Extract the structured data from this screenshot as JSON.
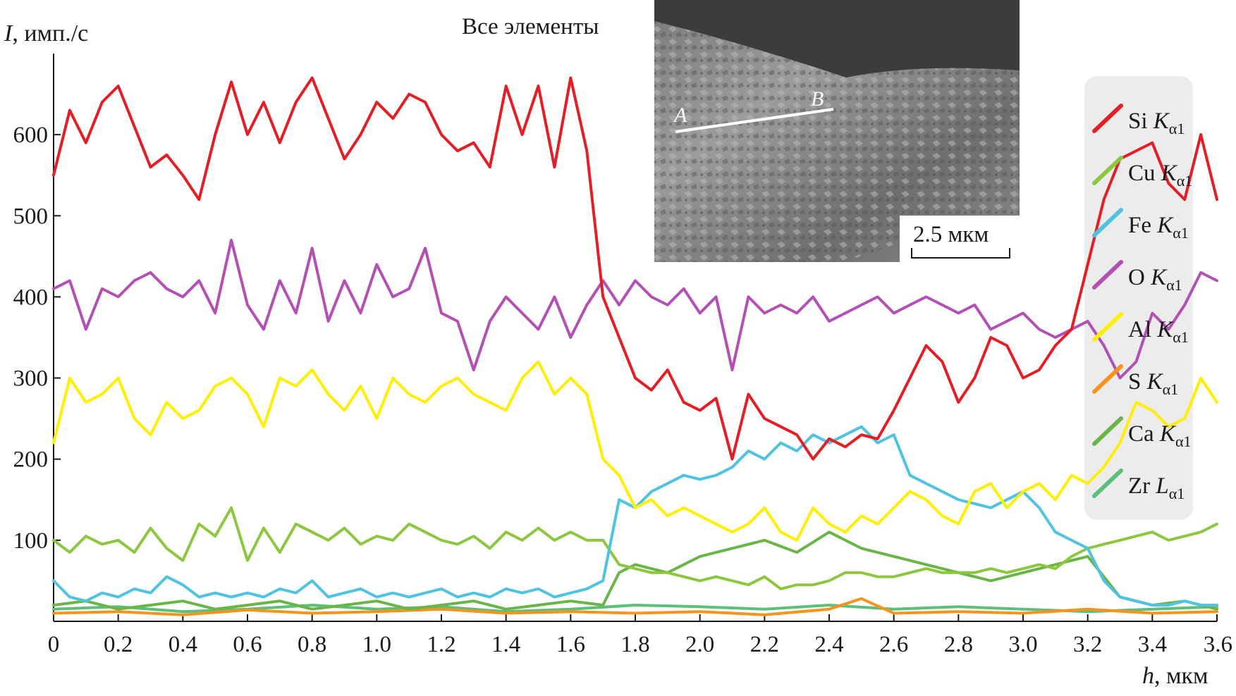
{
  "chart_data": {
    "type": "line",
    "title": "Все элементы",
    "ylabel_symbol": "I",
    "ylabel_unit": ", имп./с",
    "xlabel_symbol": "h",
    "xlabel_unit": ", мкм",
    "xlim": [
      0,
      3.6
    ],
    "ylim": [
      0,
      700
    ],
    "x_ticks": [
      0,
      0.2,
      0.4,
      0.6,
      0.8,
      1.0,
      1.2,
      1.4,
      1.6,
      1.8,
      2.0,
      2.2,
      2.4,
      2.6,
      2.8,
      3.0,
      3.2,
      3.4,
      3.6
    ],
    "x_tick_labels": [
      "0",
      "0.2",
      "0.4",
      "0.6",
      "0.8",
      "1.0",
      "1.2",
      "1.4",
      "1.6",
      "1.8",
      "2.0",
      "2.2",
      "2.4",
      "2.6",
      "2.8",
      "3.0",
      "3.2",
      "3.4",
      "3.6"
    ],
    "y_ticks": [
      100,
      200,
      300,
      400,
      500,
      600
    ],
    "y_tick_labels": [
      "100",
      "200",
      "300",
      "400",
      "500",
      "600"
    ],
    "inset": {
      "scale_bar_label": "2.5 мкм",
      "point_a": "A",
      "point_b": "B"
    },
    "series": [
      {
        "name": "Si",
        "line": "K",
        "subscript": "α1",
        "color": "#e31e24",
        "x": [
          0,
          0.05,
          0.1,
          0.15,
          0.2,
          0.25,
          0.3,
          0.35,
          0.4,
          0.45,
          0.5,
          0.55,
          0.6,
          0.65,
          0.7,
          0.75,
          0.8,
          0.85,
          0.9,
          0.95,
          1.0,
          1.05,
          1.1,
          1.15,
          1.2,
          1.25,
          1.3,
          1.35,
          1.4,
          1.45,
          1.5,
          1.55,
          1.6,
          1.65,
          1.7,
          1.75,
          1.8,
          1.85,
          1.9,
          1.95,
          2.0,
          2.05,
          2.1,
          2.15,
          2.2,
          2.25,
          2.3,
          2.35,
          2.4,
          2.45,
          2.5,
          2.55,
          2.6,
          2.65,
          2.7,
          2.75,
          2.8,
          2.85,
          2.9,
          2.95,
          3.0,
          3.05,
          3.1,
          3.15,
          3.2,
          3.25,
          3.3,
          3.35,
          3.4,
          3.45,
          3.5,
          3.55,
          3.6
        ],
        "values": [
          550,
          630,
          590,
          640,
          660,
          610,
          560,
          575,
          550,
          520,
          600,
          665,
          600,
          640,
          590,
          640,
          670,
          620,
          570,
          600,
          640,
          620,
          650,
          640,
          600,
          580,
          590,
          560,
          660,
          600,
          660,
          560,
          670,
          580,
          400,
          350,
          300,
          285,
          310,
          270,
          260,
          275,
          200,
          280,
          250,
          240,
          230,
          200,
          225,
          215,
          230,
          225,
          260,
          300,
          340,
          320,
          270,
          300,
          350,
          340,
          300,
          310,
          340,
          360,
          440,
          520,
          570,
          580,
          590,
          540,
          520,
          600,
          520
        ]
      },
      {
        "name": "Cu",
        "line": "K",
        "subscript": "α1",
        "color": "#8dc63f",
        "x": [
          0,
          0.05,
          0.1,
          0.15,
          0.2,
          0.25,
          0.3,
          0.35,
          0.4,
          0.45,
          0.5,
          0.55,
          0.6,
          0.65,
          0.7,
          0.75,
          0.8,
          0.85,
          0.9,
          0.95,
          1.0,
          1.05,
          1.1,
          1.15,
          1.2,
          1.25,
          1.3,
          1.35,
          1.4,
          1.45,
          1.5,
          1.55,
          1.6,
          1.65,
          1.7,
          1.75,
          1.8,
          1.85,
          1.9,
          1.95,
          2.0,
          2.05,
          2.1,
          2.15,
          2.2,
          2.25,
          2.3,
          2.35,
          2.4,
          2.45,
          2.5,
          2.55,
          2.6,
          2.65,
          2.7,
          2.75,
          2.8,
          2.85,
          2.9,
          2.95,
          3.0,
          3.05,
          3.1,
          3.15,
          3.2,
          3.25,
          3.3,
          3.35,
          3.4,
          3.45,
          3.5,
          3.55,
          3.6
        ],
        "values": [
          100,
          85,
          105,
          95,
          100,
          85,
          115,
          90,
          75,
          120,
          105,
          140,
          75,
          115,
          85,
          120,
          110,
          100,
          115,
          95,
          105,
          100,
          120,
          110,
          100,
          95,
          105,
          90,
          110,
          100,
          115,
          100,
          110,
          100,
          100,
          70,
          65,
          60,
          60,
          55,
          50,
          55,
          50,
          45,
          55,
          40,
          45,
          45,
          50,
          60,
          60,
          55,
          55,
          60,
          65,
          60,
          60,
          60,
          65,
          60,
          65,
          70,
          65,
          80,
          90,
          95,
          100,
          105,
          110,
          100,
          105,
          110,
          120
        ]
      },
      {
        "name": "Fe",
        "line": "K",
        "subscript": "α1",
        "color": "#4fc3e0",
        "x": [
          0,
          0.05,
          0.1,
          0.15,
          0.2,
          0.25,
          0.3,
          0.35,
          0.4,
          0.45,
          0.5,
          0.55,
          0.6,
          0.65,
          0.7,
          0.75,
          0.8,
          0.85,
          0.9,
          0.95,
          1.0,
          1.05,
          1.1,
          1.15,
          1.2,
          1.25,
          1.3,
          1.35,
          1.4,
          1.45,
          1.5,
          1.55,
          1.6,
          1.65,
          1.7,
          1.75,
          1.8,
          1.85,
          1.9,
          1.95,
          2.0,
          2.05,
          2.1,
          2.15,
          2.2,
          2.25,
          2.3,
          2.35,
          2.4,
          2.45,
          2.5,
          2.55,
          2.6,
          2.65,
          2.7,
          2.75,
          2.8,
          2.85,
          2.9,
          2.95,
          3.0,
          3.05,
          3.1,
          3.15,
          3.2,
          3.25,
          3.3,
          3.35,
          3.4,
          3.45,
          3.5,
          3.55,
          3.6
        ],
        "values": [
          50,
          30,
          25,
          35,
          30,
          40,
          35,
          55,
          45,
          30,
          35,
          30,
          35,
          30,
          40,
          35,
          50,
          30,
          35,
          40,
          30,
          35,
          30,
          35,
          40,
          30,
          35,
          30,
          40,
          35,
          40,
          30,
          35,
          40,
          50,
          150,
          140,
          160,
          170,
          180,
          175,
          180,
          190,
          210,
          200,
          220,
          210,
          230,
          220,
          230,
          240,
          220,
          230,
          180,
          170,
          160,
          150,
          145,
          140,
          150,
          160,
          140,
          110,
          100,
          90,
          50,
          30,
          25,
          20,
          20,
          25,
          20,
          20
        ]
      },
      {
        "name": "O",
        "line": "K",
        "subscript": "α1",
        "color": "#b44fb4",
        "x": [
          0,
          0.05,
          0.1,
          0.15,
          0.2,
          0.25,
          0.3,
          0.35,
          0.4,
          0.45,
          0.5,
          0.55,
          0.6,
          0.65,
          0.7,
          0.75,
          0.8,
          0.85,
          0.9,
          0.95,
          1.0,
          1.05,
          1.1,
          1.15,
          1.2,
          1.25,
          1.3,
          1.35,
          1.4,
          1.45,
          1.5,
          1.55,
          1.6,
          1.65,
          1.7,
          1.75,
          1.8,
          1.85,
          1.9,
          1.95,
          2.0,
          2.05,
          2.1,
          2.15,
          2.2,
          2.25,
          2.3,
          2.35,
          2.4,
          2.45,
          2.5,
          2.55,
          2.6,
          2.65,
          2.7,
          2.75,
          2.8,
          2.85,
          2.9,
          2.95,
          3.0,
          3.05,
          3.1,
          3.15,
          3.2,
          3.25,
          3.3,
          3.35,
          3.4,
          3.45,
          3.5,
          3.55,
          3.6
        ],
        "values": [
          410,
          420,
          360,
          410,
          400,
          420,
          430,
          410,
          400,
          420,
          380,
          470,
          390,
          360,
          420,
          380,
          460,
          370,
          420,
          380,
          440,
          400,
          410,
          460,
          380,
          370,
          310,
          370,
          400,
          380,
          360,
          400,
          350,
          390,
          420,
          390,
          420,
          400,
          390,
          410,
          380,
          400,
          310,
          400,
          380,
          390,
          380,
          400,
          370,
          380,
          390,
          400,
          380,
          390,
          400,
          390,
          380,
          390,
          360,
          370,
          380,
          360,
          350,
          360,
          370,
          340,
          300,
          320,
          380,
          360,
          390,
          430,
          420
        ]
      },
      {
        "name": "Al",
        "line": "K",
        "subscript": "α1",
        "color": "#ffef00",
        "x": [
          0,
          0.05,
          0.1,
          0.15,
          0.2,
          0.25,
          0.3,
          0.35,
          0.4,
          0.45,
          0.5,
          0.55,
          0.6,
          0.65,
          0.7,
          0.75,
          0.8,
          0.85,
          0.9,
          0.95,
          1.0,
          1.05,
          1.1,
          1.15,
          1.2,
          1.25,
          1.3,
          1.35,
          1.4,
          1.45,
          1.5,
          1.55,
          1.6,
          1.65,
          1.7,
          1.75,
          1.8,
          1.85,
          1.9,
          1.95,
          2.0,
          2.05,
          2.1,
          2.15,
          2.2,
          2.25,
          2.3,
          2.35,
          2.4,
          2.45,
          2.5,
          2.55,
          2.6,
          2.65,
          2.7,
          2.75,
          2.8,
          2.85,
          2.9,
          2.95,
          3.0,
          3.05,
          3.1,
          3.15,
          3.2,
          3.25,
          3.3,
          3.35,
          3.4,
          3.45,
          3.5,
          3.55,
          3.6
        ],
        "values": [
          220,
          300,
          270,
          280,
          300,
          250,
          230,
          270,
          250,
          260,
          290,
          300,
          280,
          240,
          300,
          290,
          310,
          280,
          260,
          290,
          250,
          300,
          280,
          270,
          290,
          300,
          280,
          270,
          260,
          300,
          320,
          280,
          300,
          280,
          200,
          180,
          140,
          150,
          130,
          140,
          130,
          120,
          110,
          120,
          140,
          110,
          100,
          140,
          120,
          110,
          130,
          120,
          140,
          160,
          150,
          130,
          120,
          160,
          170,
          140,
          160,
          170,
          150,
          180,
          170,
          190,
          220,
          270,
          260,
          240,
          250,
          300,
          270
        ]
      },
      {
        "name": "S",
        "line": "K",
        "subscript": "α1",
        "color": "#f7941d",
        "x": [
          0,
          0.2,
          0.4,
          0.6,
          0.8,
          1.0,
          1.2,
          1.4,
          1.6,
          1.8,
          2.0,
          2.2,
          2.4,
          2.5,
          2.6,
          2.8,
          3.0,
          3.2,
          3.4,
          3.6
        ],
        "values": [
          10,
          12,
          8,
          14,
          10,
          12,
          15,
          10,
          12,
          10,
          12,
          8,
          15,
          28,
          10,
          12,
          10,
          15,
          10,
          12
        ]
      },
      {
        "name": "Ca",
        "line": "K",
        "subscript": "α1",
        "color": "#6ab547",
        "x": [
          0,
          0.1,
          0.2,
          0.3,
          0.4,
          0.5,
          0.6,
          0.7,
          0.8,
          0.9,
          1.0,
          1.1,
          1.2,
          1.3,
          1.4,
          1.5,
          1.6,
          1.7,
          1.75,
          1.8,
          1.9,
          2.0,
          2.1,
          2.2,
          2.3,
          2.4,
          2.5,
          2.6,
          2.7,
          2.8,
          2.9,
          3.0,
          3.1,
          3.2,
          3.3,
          3.4,
          3.5,
          3.6
        ],
        "values": [
          20,
          25,
          15,
          20,
          25,
          15,
          20,
          25,
          15,
          20,
          25,
          15,
          20,
          25,
          15,
          20,
          25,
          20,
          60,
          70,
          60,
          80,
          90,
          100,
          85,
          110,
          90,
          80,
          70,
          60,
          50,
          60,
          70,
          80,
          30,
          20,
          25,
          15
        ]
      },
      {
        "name": "Zr",
        "line": "L",
        "subscript": "α1",
        "color": "#5cbf7a",
        "x": [
          0,
          0.2,
          0.4,
          0.6,
          0.8,
          1.0,
          1.2,
          1.4,
          1.6,
          1.8,
          2.0,
          2.2,
          2.4,
          2.6,
          2.8,
          3.0,
          3.2,
          3.4,
          3.6
        ],
        "values": [
          15,
          18,
          12,
          15,
          20,
          15,
          18,
          12,
          15,
          20,
          18,
          15,
          20,
          15,
          18,
          15,
          12,
          15,
          18
        ]
      }
    ]
  }
}
